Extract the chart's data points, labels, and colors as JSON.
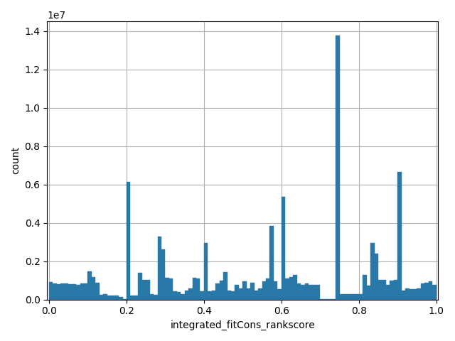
{
  "xlabel": "integrated_fitCons_rankscore",
  "ylabel": "count",
  "bar_color": "#2878a8",
  "ylim": [
    0,
    14500000.0
  ],
  "bar_positions": [
    0.005,
    0.015,
    0.025,
    0.035,
    0.045,
    0.055,
    0.065,
    0.075,
    0.085,
    0.095,
    0.105,
    0.115,
    0.125,
    0.135,
    0.145,
    0.155,
    0.165,
    0.175,
    0.185,
    0.195,
    0.205,
    0.215,
    0.225,
    0.235,
    0.245,
    0.255,
    0.265,
    0.275,
    0.285,
    0.295,
    0.305,
    0.315,
    0.325,
    0.335,
    0.345,
    0.355,
    0.365,
    0.375,
    0.385,
    0.395,
    0.405,
    0.415,
    0.425,
    0.435,
    0.445,
    0.455,
    0.465,
    0.475,
    0.485,
    0.495,
    0.505,
    0.515,
    0.525,
    0.535,
    0.545,
    0.555,
    0.565,
    0.575,
    0.585,
    0.595,
    0.605,
    0.615,
    0.625,
    0.635,
    0.645,
    0.655,
    0.665,
    0.675,
    0.685,
    0.695,
    0.705,
    0.715,
    0.725,
    0.735,
    0.745,
    0.755,
    0.765,
    0.775,
    0.785,
    0.795,
    0.805,
    0.815,
    0.825,
    0.835,
    0.845,
    0.855,
    0.865,
    0.875,
    0.885,
    0.895,
    0.905,
    0.915,
    0.925,
    0.935,
    0.945,
    0.955,
    0.965,
    0.975,
    0.985,
    0.995
  ],
  "bar_heights": [
    900000,
    850000,
    800000,
    820000,
    820000,
    800000,
    790000,
    780000,
    840000,
    840000,
    1480000,
    1180000,
    880000,
    240000,
    290000,
    190000,
    190000,
    190000,
    140000,
    25000,
    6150000,
    190000,
    190000,
    1380000,
    1020000,
    1020000,
    280000,
    240000,
    3300000,
    2600000,
    1120000,
    1080000,
    430000,
    380000,
    280000,
    480000,
    580000,
    1120000,
    1080000,
    430000,
    2950000,
    430000,
    480000,
    830000,
    980000,
    1420000,
    480000,
    430000,
    780000,
    580000,
    930000,
    580000,
    880000,
    480000,
    580000,
    930000,
    1080000,
    3850000,
    930000,
    530000,
    5350000,
    1080000,
    1180000,
    1280000,
    830000,
    780000,
    830000,
    780000,
    780000,
    780000,
    30000,
    30000,
    30000,
    30000,
    13750000,
    280000,
    280000,
    280000,
    280000,
    280000,
    280000,
    1280000,
    730000,
    2950000,
    2400000,
    1020000,
    1020000,
    780000,
    980000,
    1020000,
    6650000,
    480000,
    580000,
    530000,
    530000,
    580000,
    830000,
    880000,
    930000,
    780000
  ],
  "figsize": [
    6.4,
    4.8
  ],
  "dpi": 100
}
